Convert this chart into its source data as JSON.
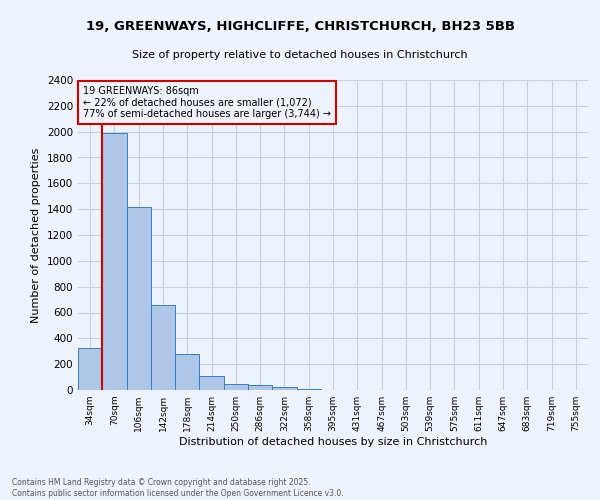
{
  "title_line1": "19, GREENWAYS, HIGHCLIFFE, CHRISTCHURCH, BH23 5BB",
  "title_line2": "Size of property relative to detached houses in Christchurch",
  "xlabel": "Distribution of detached houses by size in Christchurch",
  "ylabel": "Number of detached properties",
  "categories": [
    "34sqm",
    "70sqm",
    "106sqm",
    "142sqm",
    "178sqm",
    "214sqm",
    "250sqm",
    "286sqm",
    "322sqm",
    "358sqm",
    "395sqm",
    "431sqm",
    "467sqm",
    "503sqm",
    "539sqm",
    "575sqm",
    "611sqm",
    "647sqm",
    "683sqm",
    "719sqm",
    "755sqm"
  ],
  "values": [
    325,
    1990,
    1420,
    655,
    280,
    105,
    45,
    40,
    22,
    10,
    0,
    0,
    0,
    0,
    0,
    0,
    0,
    0,
    0,
    0,
    0
  ],
  "bar_color": "#aec6e8",
  "bar_edge_color": "#3a7dbf",
  "grid_color": "#c8d0e0",
  "bg_color": "#eef2fb",
  "property_line_x": 1,
  "annotation_line1": "19 GREENWAYS: 86sqm",
  "annotation_line2": "← 22% of detached houses are smaller (1,072)",
  "annotation_line3": "77% of semi-detached houses are larger (3,744) →",
  "annotation_box_color": "#cc0000",
  "vline_color": "#cc0000",
  "footer_line1": "Contains HM Land Registry data © Crown copyright and database right 2025.",
  "footer_line2": "Contains public sector information licensed under the Open Government Licence v3.0.",
  "ylim": [
    0,
    2400
  ],
  "yticks": [
    0,
    200,
    400,
    600,
    800,
    1000,
    1200,
    1400,
    1600,
    1800,
    2000,
    2200,
    2400
  ]
}
